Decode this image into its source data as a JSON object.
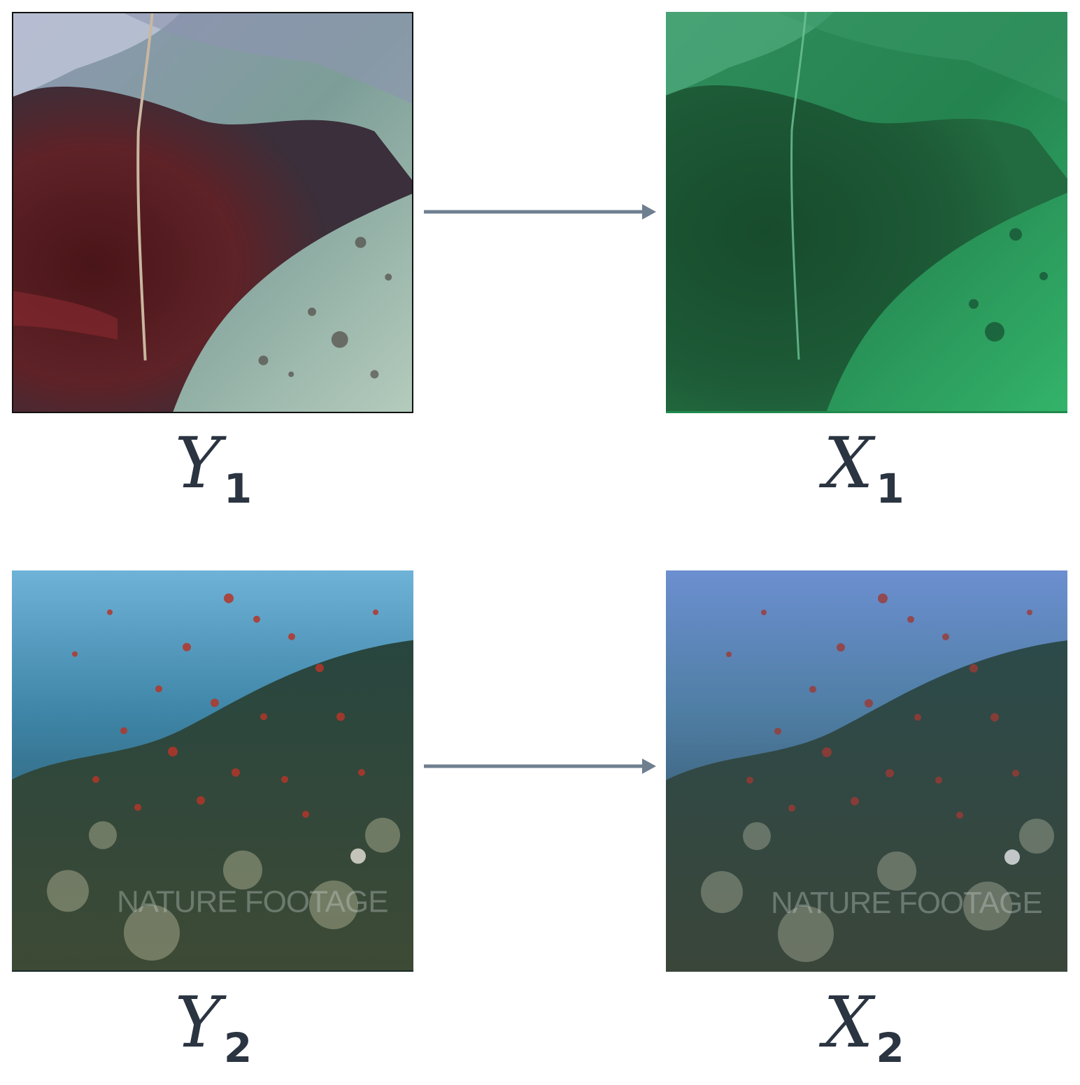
{
  "rows": [
    {
      "input": {
        "variable": "Y",
        "subscript": "1"
      },
      "output": {
        "variable": "X",
        "subscript": "1"
      }
    },
    {
      "input": {
        "variable": "Y",
        "subscript": "2"
      },
      "output": {
        "variable": "X",
        "subscript": "2"
      }
    }
  ],
  "watermark_text": "NATURE FOOTAGE",
  "colors": {
    "arrow": "#6e7f90",
    "label": "#2b3441",
    "y1_rock": "#5a1f22",
    "y1_sand": "#a9c4b4",
    "x1_green": "#2aa862",
    "y2_water": "#3f86a8",
    "x2_water": "#5a7fbd"
  }
}
